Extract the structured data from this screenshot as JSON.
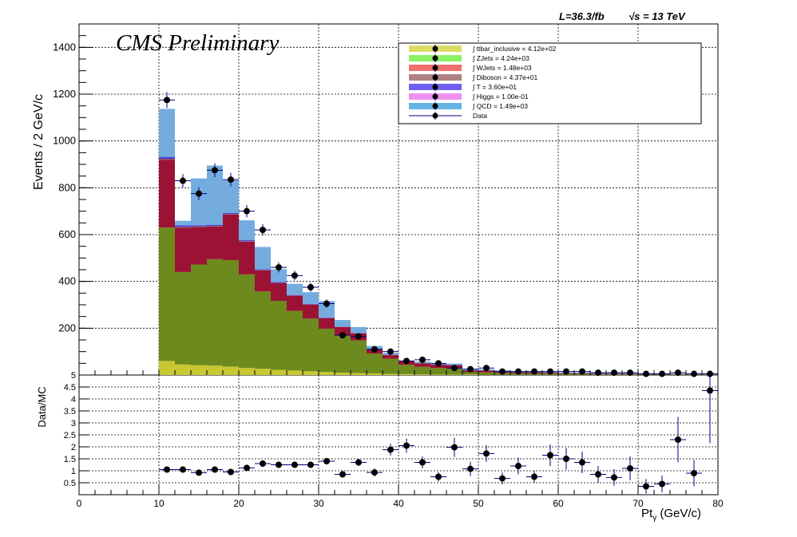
{
  "header": {
    "lumi": "L=36.3/fb",
    "energy_prefix": "√s",
    "energy_suffix": " = 13 TeV",
    "cms_label": "CMS Preliminary"
  },
  "axes": {
    "ylabel_main": "Events / 2 GeV/c",
    "ylabel_ratio": "Data/MC",
    "xlabel": "Pt",
    "xlabel_sub": "γ",
    "xlabel_unit": " (GeV/c)"
  },
  "colors": {
    "ttbar": "#c8c832",
    "zjets": "#6d8a1e",
    "wjets": "#9b1234",
    "diboson": "#8c5a5a",
    "T": "#4a3ad0",
    "higgs": "#e070e0",
    "qcd": "#74ace0"
  },
  "legend": [
    {
      "label": "∫ ttbar_inclusive = 4.12e+02",
      "fill": "#dcdc64"
    },
    {
      "label": "∫ ZJets = 4.24e+03",
      "fill": "#8cf064"
    },
    {
      "label": "∫ WJets = 1.48e+03",
      "fill": "#f07070"
    },
    {
      "label": "∫ Diboson = 4.37e+01",
      "fill": "#b08282"
    },
    {
      "label": "∫ T = 3.60e+01",
      "fill": "#7060f0"
    },
    {
      "label": "∫ Higgs = 1.00e-01",
      "fill": "#f090f0"
    },
    {
      "label": "∫ QCD = 1.49e+03",
      "fill": "#64b4e6"
    },
    {
      "label": "Data",
      "fill": "none"
    }
  ],
  "chart_data": [
    {
      "type": "bar",
      "stacked": true,
      "x_bin_edges": [
        10,
        12,
        14,
        16,
        18,
        20,
        22,
        24,
        26,
        28,
        30,
        32,
        34,
        36,
        38,
        40,
        42,
        44,
        46,
        48,
        50,
        52,
        54,
        56,
        58,
        60,
        62,
        64,
        66,
        68,
        70,
        72,
        74,
        76,
        78,
        80
      ],
      "xlim": [
        0,
        80
      ],
      "ylim": [
        0,
        1500
      ],
      "yticks": [
        200,
        400,
        600,
        800,
        1000,
        1200,
        1400
      ],
      "xticks": [
        0,
        10,
        20,
        30,
        40,
        50,
        60,
        70,
        80
      ],
      "grid": true,
      "legend_position": "top-right",
      "series": [
        {
          "name": "ttbar_inclusive",
          "values": [
            60,
            45,
            42,
            40,
            36,
            30,
            27,
            22,
            19,
            16,
            13,
            10,
            8,
            7,
            5,
            4,
            3,
            2,
            2,
            2,
            1,
            1,
            1,
            1,
            1,
            1,
            1,
            0,
            0,
            0,
            0,
            0,
            0,
            0,
            0
          ]
        },
        {
          "name": "ZJets",
          "values": [
            570,
            395,
            430,
            455,
            455,
            400,
            330,
            295,
            255,
            225,
            185,
            160,
            140,
            85,
            65,
            40,
            32,
            28,
            25,
            10,
            10,
            8,
            6,
            6,
            5,
            4,
            4,
            3,
            3,
            3,
            2,
            2,
            2,
            2,
            1
          ]
        },
        {
          "name": "WJets",
          "values": [
            290,
            190,
            160,
            140,
            195,
            140,
            90,
            75,
            65,
            60,
            45,
            35,
            30,
            18,
            15,
            15,
            15,
            14,
            15,
            8,
            8,
            6,
            5,
            5,
            4,
            3,
            3,
            3,
            3,
            3,
            2,
            2,
            2,
            1,
            1
          ]
        },
        {
          "name": "Diboson",
          "values": [
            4,
            3,
            3,
            2,
            2,
            2,
            2,
            2,
            1,
            1,
            1,
            1,
            1,
            1,
            1,
            1,
            1,
            1,
            1,
            0,
            0,
            0,
            0,
            0,
            0,
            0,
            0,
            0,
            0,
            0,
            0,
            0,
            0,
            0,
            0
          ]
        },
        {
          "name": "T",
          "values": [
            8,
            6,
            5,
            5,
            4,
            4,
            3,
            3,
            2,
            2,
            2,
            1,
            1,
            1,
            1,
            1,
            1,
            1,
            1,
            0,
            0,
            0,
            0,
            0,
            0,
            0,
            0,
            0,
            0,
            0,
            0,
            0,
            0,
            0,
            0
          ]
        },
        {
          "name": "Higgs",
          "values": [
            0,
            0,
            0,
            0,
            0,
            0,
            0,
            0,
            0,
            0,
            0,
            0,
            0,
            0,
            0,
            0,
            0,
            0,
            0,
            0,
            0,
            0,
            0,
            0,
            0,
            0,
            0,
            0,
            0,
            0,
            0,
            0,
            0,
            0,
            0
          ]
        },
        {
          "name": "QCD",
          "values": [
            205,
            20,
            200,
            253,
            140,
            85,
            95,
            55,
            48,
            50,
            70,
            28,
            25,
            12,
            8,
            0,
            5,
            5,
            5,
            5,
            5,
            5,
            5,
            4,
            4,
            3,
            3,
            3,
            2,
            2,
            2,
            2,
            2,
            1,
            1
          ]
        },
        {
          "name": "Data",
          "type": "scatter",
          "values": [
            1175,
            830,
            775,
            875,
            835,
            700,
            620,
            460,
            425,
            375,
            305,
            170,
            165,
            110,
            100,
            60,
            65,
            50,
            30,
            25,
            30,
            15,
            15,
            15,
            15,
            15,
            15,
            10,
            10,
            10,
            5,
            5,
            10,
            5,
            5
          ]
        }
      ]
    },
    {
      "type": "scatter",
      "title": "",
      "xlim": [
        0,
        80
      ],
      "ylim": [
        0,
        5
      ],
      "yticks": [
        0.5,
        1,
        1.5,
        2,
        2.5,
        3,
        3.5,
        4,
        4.5,
        5
      ],
      "yticklabels": [
        "0.5",
        "1",
        "1.5",
        "2",
        "2.5",
        "3",
        "3.5",
        "4",
        "4.5",
        "5"
      ],
      "grid": true,
      "x": [
        11,
        13,
        15,
        17,
        19,
        21,
        23,
        25,
        27,
        29,
        31,
        33,
        35,
        37,
        39,
        41,
        43,
        45,
        47,
        49,
        51,
        53,
        55,
        57,
        59,
        61,
        63,
        65,
        67,
        69,
        71,
        73,
        75,
        77,
        79
      ],
      "values": [
        1.05,
        1.05,
        0.92,
        1.05,
        0.95,
        1.12,
        1.3,
        1.25,
        1.25,
        1.25,
        1.4,
        0.85,
        1.35,
        0.93,
        1.88,
        2.05,
        1.35,
        0.75,
        1.98,
        1.08,
        1.72,
        0.68,
        1.2,
        0.75,
        1.65,
        1.5,
        1.35,
        0.85,
        0.72,
        1.1,
        0.35,
        0.45,
        2.3,
        0.9,
        4.35
      ],
      "errors": [
        0.06,
        0.07,
        0.07,
        0.07,
        0.07,
        0.08,
        0.09,
        0.1,
        0.11,
        0.12,
        0.13,
        0.12,
        0.15,
        0.17,
        0.25,
        0.3,
        0.25,
        0.2,
        0.4,
        0.3,
        0.35,
        0.25,
        0.35,
        0.25,
        0.45,
        0.45,
        0.45,
        0.35,
        0.35,
        0.5,
        0.3,
        0.35,
        0.95,
        0.55,
        2.2
      ]
    }
  ]
}
